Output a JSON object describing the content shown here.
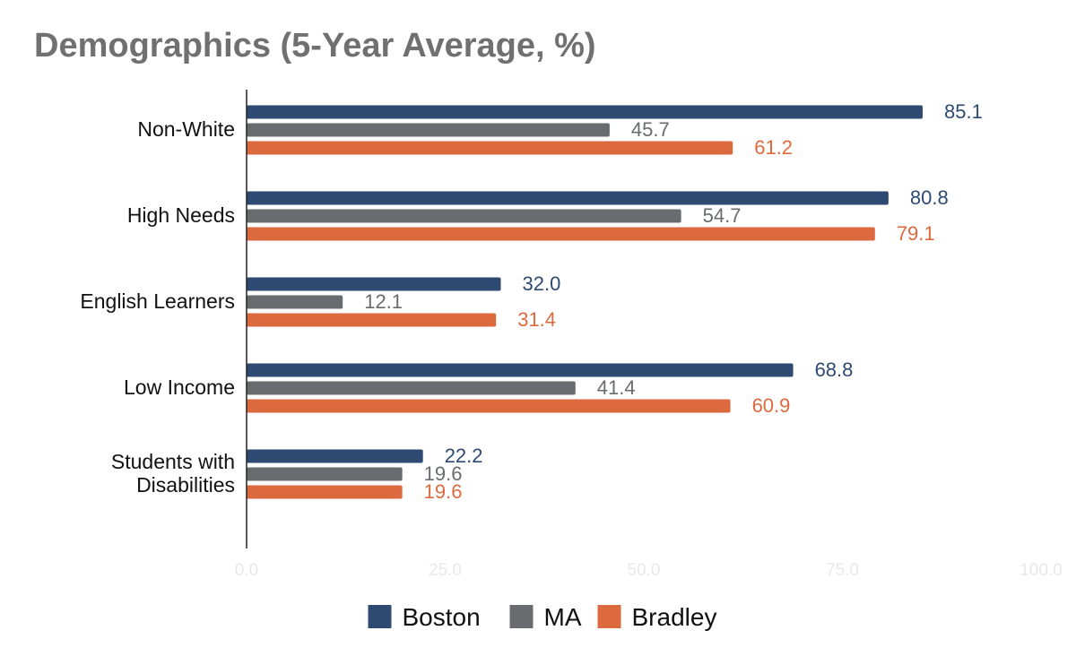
{
  "chart_data": {
    "type": "bar",
    "orientation": "horizontal",
    "title": "Demographics (5-Year Average, %)",
    "categories": [
      "Non-White",
      "High Needs",
      "English Learners",
      "Low Income",
      "Students with Disabilities"
    ],
    "category_lines": [
      [
        "Non-White"
      ],
      [
        "High Needs"
      ],
      [
        "English Learners"
      ],
      [
        "Low Income"
      ],
      [
        "Students with",
        "Disabilities"
      ]
    ],
    "series": [
      {
        "name": "Boston",
        "color": "#2e4a73",
        "values": [
          85.1,
          80.8,
          32.0,
          68.8,
          22.2
        ],
        "labels": [
          "85.1",
          "80.8",
          "32.0",
          "68.8",
          "22.2"
        ]
      },
      {
        "name": "MA",
        "color": "#696b6f",
        "values": [
          45.7,
          54.7,
          12.1,
          41.4,
          19.6
        ],
        "labels": [
          "45.7",
          "54.7",
          "12.1",
          "41.4",
          "19.6"
        ]
      },
      {
        "name": "Bradley",
        "color": "#dd6a3f",
        "values": [
          61.2,
          79.1,
          31.4,
          60.9,
          19.6
        ],
        "labels": [
          "61.2",
          "79.1",
          "31.4",
          "60.9",
          "19.6"
        ]
      }
    ],
    "xlim": [
      0,
      100
    ],
    "xticks": [
      "0.0",
      "25.0",
      "50.0",
      "75.0",
      "100.0"
    ],
    "xtick_values": [
      0,
      25,
      50,
      75,
      100
    ],
    "tick_color": "#e8e8e8",
    "axis_color": "#222222",
    "label_color": "#111111",
    "grid": false,
    "legend_position": "bottom-center"
  }
}
